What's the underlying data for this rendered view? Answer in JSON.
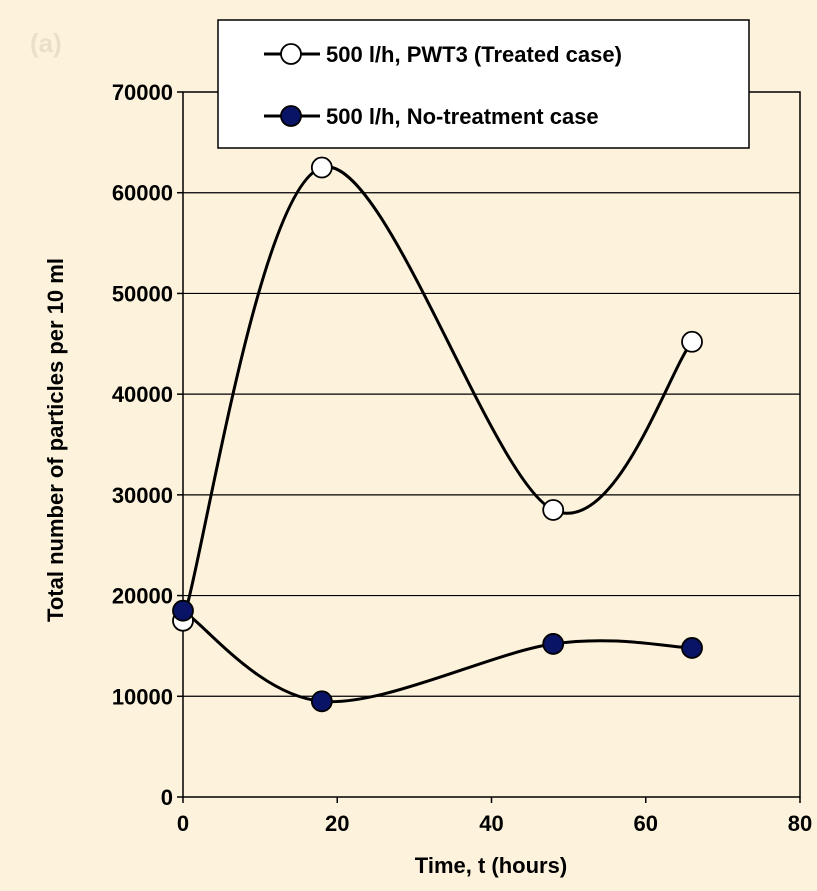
{
  "chart_data": {
    "type": "line",
    "panel_label": "(a)",
    "xlabel": "Time, t (hours)",
    "ylabel": "Total number of particles per 10 ml",
    "xlim": [
      0,
      80
    ],
    "ylim": [
      0,
      70000
    ],
    "xticks": [
      0,
      20,
      40,
      60,
      80
    ],
    "yticks": [
      0,
      10000,
      20000,
      30000,
      40000,
      50000,
      60000,
      70000
    ],
    "grid": "horizontal",
    "legend_position": "top-right",
    "series": [
      {
        "name": "500 l/h, PWT3 (Treated case)",
        "marker": "open-circle",
        "marker_color": "#ffffff",
        "x": [
          0,
          18,
          48,
          66
        ],
        "y": [
          17500,
          62500,
          28500,
          45200
        ]
      },
      {
        "name": "500 l/h, No-treatment case",
        "marker": "filled-circle",
        "marker_color": "#0a1466",
        "x": [
          0,
          18,
          48,
          66
        ],
        "y": [
          18500,
          9500,
          15200,
          14800
        ]
      }
    ]
  }
}
